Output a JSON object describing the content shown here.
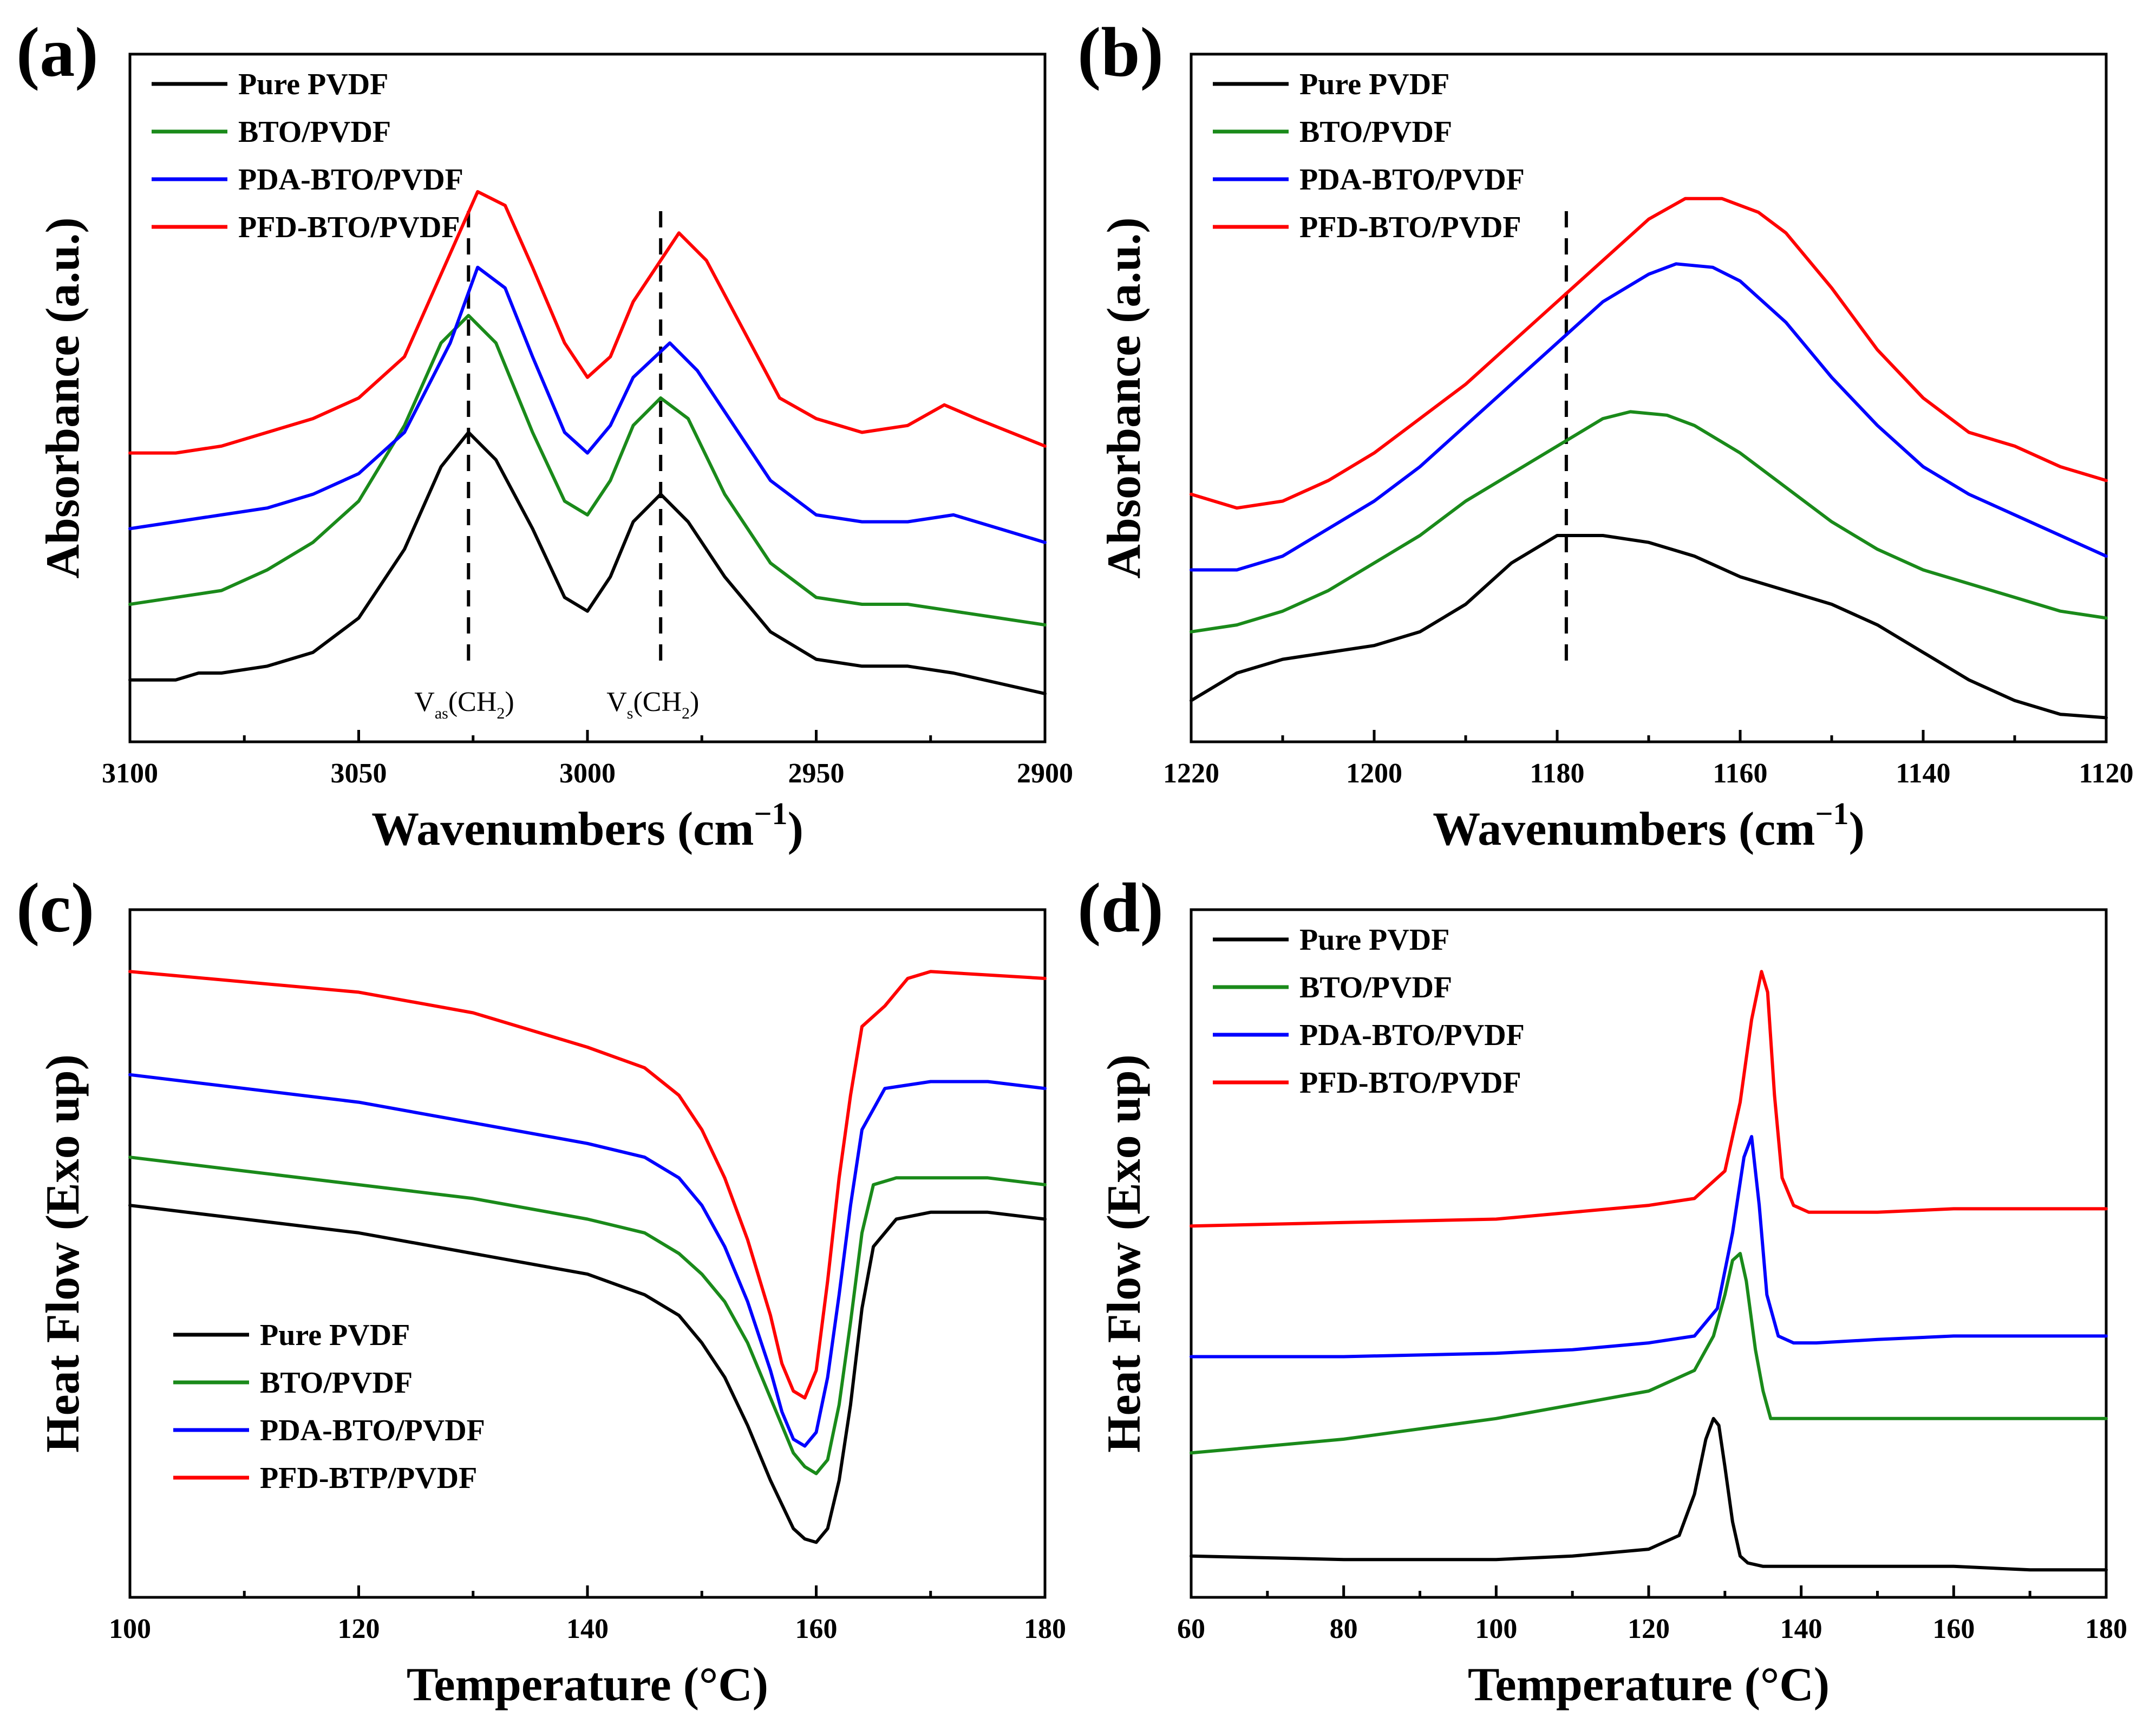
{
  "colors": {
    "pure": "#000000",
    "bto": "#1a8a1a",
    "pda": "#0000ff",
    "pfd": "#ff0000"
  },
  "chart_data": [
    {
      "panel": "(a)",
      "type": "line",
      "xlabel": "Wavenumbers (cm",
      "xlabel_sup": "−1",
      "xlabel_close": ")",
      "ylabel": "Absorbance (a.u.)",
      "xlim": [
        3100,
        2900
      ],
      "ylim": [
        0,
        10
      ],
      "xticks": [
        3100,
        3050,
        3000,
        2950,
        2900
      ],
      "legend_position": "top-left",
      "dashed_markers": [
        3026,
        2984
      ],
      "annotations": [
        {
          "main": "V",
          "sub": "as",
          "mid": "(CH",
          "sub2": "2",
          "end": ")",
          "x": 3026,
          "y": 0.45
        },
        {
          "main": "V",
          "sub": "s",
          "mid": "(CH",
          "sub2": "2",
          "end": ")",
          "x": 2984,
          "y": 0.45
        }
      ],
      "series": [
        {
          "name": "Pure PVDF",
          "color_key": "pure",
          "x": [
            3100,
            3090,
            3085,
            3080,
            3070,
            3060,
            3050,
            3040,
            3032,
            3026,
            3020,
            3012,
            3005,
            3000,
            2995,
            2990,
            2984,
            2978,
            2970,
            2960,
            2950,
            2940,
            2930,
            2920,
            2910,
            2900
          ],
          "y": [
            0.9,
            0.9,
            1.0,
            1.0,
            1.1,
            1.3,
            1.8,
            2.8,
            4.0,
            4.5,
            4.1,
            3.1,
            2.1,
            1.9,
            2.4,
            3.2,
            3.6,
            3.2,
            2.4,
            1.6,
            1.2,
            1.1,
            1.1,
            1.0,
            0.85,
            0.7
          ]
        },
        {
          "name": "BTO/PVDF",
          "color_key": "bto",
          "x": [
            3100,
            3090,
            3080,
            3070,
            3060,
            3050,
            3040,
            3032,
            3026,
            3020,
            3012,
            3005,
            3000,
            2995,
            2990,
            2984,
            2978,
            2970,
            2960,
            2950,
            2940,
            2930,
            2920,
            2910,
            2900
          ],
          "y": [
            2.0,
            2.1,
            2.2,
            2.5,
            2.9,
            3.5,
            4.6,
            5.8,
            6.2,
            5.8,
            4.5,
            3.5,
            3.3,
            3.8,
            4.6,
            5.0,
            4.7,
            3.6,
            2.6,
            2.1,
            2.0,
            2.0,
            1.9,
            1.8,
            1.7
          ]
        },
        {
          "name": "PDA-BTO/PVDF",
          "color_key": "pda",
          "x": [
            3100,
            3090,
            3080,
            3070,
            3060,
            3050,
            3040,
            3030,
            3024,
            3018,
            3012,
            3005,
            3000,
            2995,
            2990,
            2982,
            2976,
            2968,
            2960,
            2950,
            2940,
            2930,
            2920,
            2910,
            2900
          ],
          "y": [
            3.1,
            3.2,
            3.3,
            3.4,
            3.6,
            3.9,
            4.5,
            5.8,
            6.9,
            6.6,
            5.6,
            4.5,
            4.2,
            4.6,
            5.3,
            5.8,
            5.4,
            4.6,
            3.8,
            3.3,
            3.2,
            3.2,
            3.3,
            3.1,
            2.9
          ]
        },
        {
          "name": "PFD-BTO/PVDF",
          "color_key": "pfd",
          "x": [
            3100,
            3090,
            3080,
            3070,
            3060,
            3050,
            3040,
            3030,
            3024,
            3018,
            3012,
            3005,
            3000,
            2995,
            2990,
            2980,
            2974,
            2966,
            2958,
            2950,
            2940,
            2930,
            2922,
            2915,
            2900
          ],
          "y": [
            4.2,
            4.2,
            4.3,
            4.5,
            4.7,
            5.0,
            5.6,
            7.1,
            8.0,
            7.8,
            6.9,
            5.8,
            5.3,
            5.6,
            6.4,
            7.4,
            7.0,
            6.0,
            5.0,
            4.7,
            4.5,
            4.6,
            4.9,
            4.7,
            4.3
          ]
        }
      ]
    },
    {
      "panel": "(b)",
      "type": "line",
      "xlabel": "Wavenumbers (cm",
      "xlabel_sup": "−1",
      "xlabel_close": ")",
      "ylabel": "Absorbance (a.u.)",
      "xlim": [
        1220,
        1120
      ],
      "ylim": [
        0,
        10
      ],
      "xticks": [
        1220,
        1200,
        1180,
        1160,
        1140,
        1120
      ],
      "legend_position": "top-left",
      "dashed_markers": [
        1179
      ],
      "series": [
        {
          "name": "Pure PVDF",
          "color_key": "pure",
          "x": [
            1220,
            1215,
            1210,
            1205,
            1200,
            1195,
            1190,
            1185,
            1180,
            1175,
            1170,
            1165,
            1160,
            1155,
            1150,
            1145,
            1140,
            1135,
            1130,
            1125,
            1120
          ],
          "y": [
            0.6,
            1.0,
            1.2,
            1.3,
            1.4,
            1.6,
            2.0,
            2.6,
            3.0,
            3.0,
            2.9,
            2.7,
            2.4,
            2.2,
            2.0,
            1.7,
            1.3,
            0.9,
            0.6,
            0.4,
            0.35
          ]
        },
        {
          "name": "BTO/PVDF",
          "color_key": "bto",
          "x": [
            1220,
            1215,
            1210,
            1205,
            1200,
            1195,
            1190,
            1185,
            1180,
            1175,
            1172,
            1168,
            1165,
            1160,
            1155,
            1150,
            1145,
            1140,
            1135,
            1130,
            1125,
            1120
          ],
          "y": [
            1.6,
            1.7,
            1.9,
            2.2,
            2.6,
            3.0,
            3.5,
            3.9,
            4.3,
            4.7,
            4.8,
            4.75,
            4.6,
            4.2,
            3.7,
            3.2,
            2.8,
            2.5,
            2.3,
            2.1,
            1.9,
            1.8
          ]
        },
        {
          "name": "PDA-BTO/PVDF",
          "color_key": "pda",
          "x": [
            1220,
            1215,
            1210,
            1205,
            1200,
            1195,
            1190,
            1185,
            1180,
            1175,
            1170,
            1167,
            1163,
            1160,
            1155,
            1150,
            1145,
            1140,
            1135,
            1130,
            1125,
            1120
          ],
          "y": [
            2.5,
            2.5,
            2.7,
            3.1,
            3.5,
            4.0,
            4.6,
            5.2,
            5.8,
            6.4,
            6.8,
            6.95,
            6.9,
            6.7,
            6.1,
            5.3,
            4.6,
            4.0,
            3.6,
            3.3,
            3.0,
            2.7
          ]
        },
        {
          "name": "PFD-BTO/PVDF",
          "color_key": "pfd",
          "x": [
            1220,
            1215,
            1210,
            1205,
            1200,
            1195,
            1190,
            1185,
            1180,
            1175,
            1170,
            1166,
            1162,
            1158,
            1155,
            1150,
            1145,
            1140,
            1135,
            1130,
            1125,
            1120
          ],
          "y": [
            3.6,
            3.4,
            3.5,
            3.8,
            4.2,
            4.7,
            5.2,
            5.8,
            6.4,
            7.0,
            7.6,
            7.9,
            7.9,
            7.7,
            7.4,
            6.6,
            5.7,
            5.0,
            4.5,
            4.3,
            4.0,
            3.8
          ]
        }
      ]
    },
    {
      "panel": "(c)",
      "type": "line",
      "xlabel": "Temperature (°C)",
      "ylabel": "Heat Flow (Exo up)",
      "xlim": [
        100,
        180
      ],
      "ylim": [
        0,
        10
      ],
      "xticks": [
        100,
        120,
        140,
        160,
        180
      ],
      "legend_position": "bottom-left",
      "series": [
        {
          "name": "Pure PVDF",
          "color_key": "pure",
          "x": [
            100,
            110,
            120,
            130,
            140,
            145,
            148,
            150,
            152,
            154,
            156,
            158,
            159,
            160,
            161,
            162,
            163,
            164,
            165,
            167,
            170,
            175,
            180
          ],
          "y": [
            5.7,
            5.5,
            5.3,
            5.0,
            4.7,
            4.4,
            4.1,
            3.7,
            3.2,
            2.5,
            1.7,
            1.0,
            0.85,
            0.8,
            1.0,
            1.7,
            2.8,
            4.2,
            5.1,
            5.5,
            5.6,
            5.6,
            5.5
          ]
        },
        {
          "name": "BTO/PVDF",
          "color_key": "bto",
          "x": [
            100,
            110,
            120,
            130,
            140,
            145,
            148,
            150,
            152,
            154,
            156,
            158,
            159,
            160,
            161,
            162,
            163,
            164,
            165,
            167,
            170,
            175,
            180
          ],
          "y": [
            6.4,
            6.2,
            6.0,
            5.8,
            5.5,
            5.3,
            5.0,
            4.7,
            4.3,
            3.7,
            2.9,
            2.1,
            1.9,
            1.8,
            2.0,
            2.8,
            4.0,
            5.3,
            6.0,
            6.1,
            6.1,
            6.1,
            6.0
          ]
        },
        {
          "name": "PDA-BTO/PVDF",
          "color_key": "pda",
          "x": [
            100,
            110,
            120,
            130,
            140,
            145,
            148,
            150,
            152,
            154,
            156,
            157,
            158,
            159,
            160,
            161,
            162,
            163,
            164,
            166,
            170,
            175,
            180
          ],
          "y": [
            7.6,
            7.4,
            7.2,
            6.9,
            6.6,
            6.4,
            6.1,
            5.7,
            5.1,
            4.3,
            3.3,
            2.7,
            2.3,
            2.2,
            2.4,
            3.2,
            4.4,
            5.7,
            6.8,
            7.4,
            7.5,
            7.5,
            7.4
          ]
        },
        {
          "name": "PFD-BTP/PVDF",
          "color_key": "pfd",
          "x": [
            100,
            110,
            120,
            130,
            140,
            145,
            148,
            150,
            152,
            154,
            156,
            157,
            158,
            159,
            160,
            161,
            162,
            163,
            164,
            166,
            168,
            170,
            175,
            180
          ],
          "y": [
            9.1,
            8.95,
            8.8,
            8.5,
            8.0,
            7.7,
            7.3,
            6.8,
            6.1,
            5.2,
            4.1,
            3.4,
            3.0,
            2.9,
            3.3,
            4.6,
            6.1,
            7.3,
            8.3,
            8.6,
            9.0,
            9.1,
            9.05,
            9.0
          ]
        }
      ]
    },
    {
      "panel": "(d)",
      "type": "line",
      "xlabel": "Temperature (°C)",
      "ylabel": "Heat Flow (Exo up)",
      "xlim": [
        60,
        180
      ],
      "ylim": [
        0,
        10
      ],
      "xticks": [
        60,
        80,
        100,
        120,
        140,
        160,
        180
      ],
      "legend_position": "top-left",
      "series": [
        {
          "name": "Pure PVDF",
          "color_key": "pure",
          "x": [
            60,
            80,
            100,
            110,
            120,
            124,
            126,
            127.5,
            128.5,
            129.2,
            130,
            131,
            132,
            133,
            135,
            140,
            150,
            160,
            170,
            180
          ],
          "y": [
            0.6,
            0.55,
            0.55,
            0.6,
            0.7,
            0.9,
            1.5,
            2.3,
            2.6,
            2.5,
            1.9,
            1.1,
            0.6,
            0.5,
            0.45,
            0.45,
            0.45,
            0.45,
            0.4,
            0.4
          ]
        },
        {
          "name": "BTO/PVDF",
          "color_key": "bto",
          "x": [
            60,
            80,
            100,
            110,
            120,
            126,
            128.5,
            130,
            131,
            132,
            132.8,
            134,
            135,
            136,
            138,
            140,
            150,
            160,
            170,
            180
          ],
          "y": [
            2.1,
            2.3,
            2.6,
            2.8,
            3.0,
            3.3,
            3.8,
            4.4,
            4.9,
            5.0,
            4.6,
            3.6,
            3.0,
            2.6,
            2.6,
            2.6,
            2.6,
            2.6,
            2.6,
            2.6
          ]
        },
        {
          "name": "PDA-BTO/PVDF",
          "color_key": "pda",
          "x": [
            60,
            80,
            100,
            110,
            120,
            126,
            129,
            131,
            132.5,
            133.5,
            134.5,
            135.5,
            137,
            139,
            142,
            150,
            160,
            170,
            180
          ],
          "y": [
            3.5,
            3.5,
            3.55,
            3.6,
            3.7,
            3.8,
            4.2,
            5.3,
            6.4,
            6.7,
            5.7,
            4.4,
            3.8,
            3.7,
            3.7,
            3.75,
            3.8,
            3.8,
            3.8
          ]
        },
        {
          "name": "PFD-BTO/PVDF",
          "color_key": "pfd",
          "x": [
            60,
            80,
            100,
            110,
            120,
            126,
            130,
            132,
            133.5,
            134.8,
            135.6,
            136.5,
            137.5,
            139,
            141,
            150,
            160,
            170,
            180
          ],
          "y": [
            5.4,
            5.45,
            5.5,
            5.6,
            5.7,
            5.8,
            6.2,
            7.2,
            8.4,
            9.1,
            8.8,
            7.3,
            6.1,
            5.7,
            5.6,
            5.6,
            5.65,
            5.65,
            5.65
          ]
        }
      ]
    }
  ]
}
